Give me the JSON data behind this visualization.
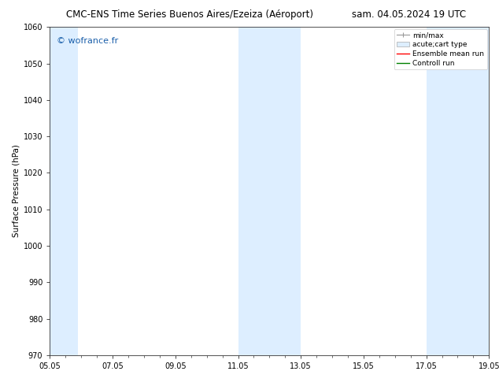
{
  "title_left": "CMC-ENS Time Series Buenos Aires/Ezeiza (Aéroport)",
  "title_right": "sam. 04.05.2024 19 UTC",
  "ylabel": "Surface Pressure (hPa)",
  "ylim": [
    970,
    1060
  ],
  "yticks": [
    970,
    980,
    990,
    1000,
    1010,
    1020,
    1030,
    1040,
    1050,
    1060
  ],
  "shaded_bands": [
    {
      "xmin": 0.0,
      "xmax": 0.9
    },
    {
      "xmin": 6.0,
      "xmax": 8.0
    },
    {
      "xmin": 12.0,
      "xmax": 14.0
    }
  ],
  "shade_color": "#ddeeff",
  "background_color": "#ffffff",
  "watermark_text": "© wofrance.fr",
  "watermark_color": "#1a5faa",
  "legend_entries": [
    {
      "label": "min/max",
      "type": "errorbar",
      "color": "#999999"
    },
    {
      "label": "acute;cart type",
      "type": "patch",
      "facecolor": "#ddeeff",
      "edgecolor": "#aaaaaa"
    },
    {
      "label": "Ensemble mean run",
      "type": "line",
      "color": "red"
    },
    {
      "label": "Controll run",
      "type": "line",
      "color": "green"
    }
  ],
  "x_tick_positions": [
    0,
    2,
    4,
    6,
    8,
    10,
    12,
    14
  ],
  "x_tick_labels": [
    "05.05",
    "07.05",
    "09.05",
    "11.05",
    "13.05",
    "15.05",
    "17.05",
    "19.05"
  ],
  "xlim": [
    0,
    14
  ],
  "title_fontsize": 8.5,
  "ylabel_fontsize": 7.5,
  "tick_fontsize": 7,
  "watermark_fontsize": 8,
  "legend_fontsize": 6.5
}
